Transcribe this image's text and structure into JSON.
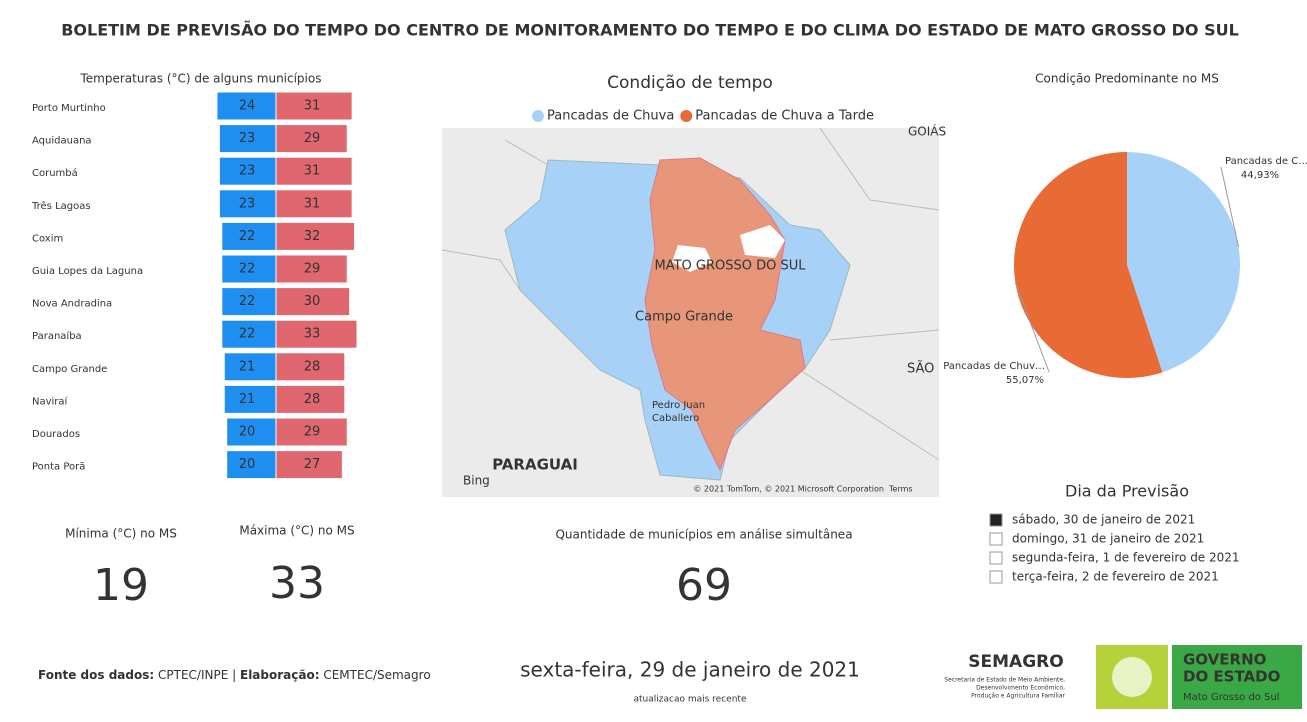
{
  "title": "BOLETIM DE PREVISÃO DO TEMPO DO CENTRO DE MONITORAMENTO DO TEMPO E DO CLIMA DO ESTADO DE MATO GROSSO DO SUL",
  "chart_data": [
    {
      "type": "diverging-bar",
      "title": "Temperaturas (°C) de alguns municípios",
      "categories": [
        "Porto Murtinho",
        "Aquidauana",
        "Corumbá",
        "Três Lagoas",
        "Coxim",
        "Guia Lopes da Laguna",
        "Nova Andradina",
        "Paranaíba",
        "Campo Grande",
        "Naviraí",
        "Dourados",
        "Ponta Porã"
      ],
      "series": [
        {
          "color": "#1e8ff0",
          "values": [
            24,
            23,
            23,
            23,
            22,
            22,
            22,
            22,
            21,
            21,
            20,
            20
          ]
        },
        {
          "color": "#e0666f",
          "values": [
            31,
            29,
            31,
            31,
            32,
            29,
            30,
            33,
            28,
            28,
            29,
            27
          ]
        }
      ]
    },
    {
      "type": "pie",
      "title": "Condição Predominante no MS",
      "categories": [
        "Pancadas de C…",
        "Pancadas de Chuv…"
      ],
      "values": [
        44.93,
        55.07
      ],
      "value_labels": [
        "44,93%",
        "55,07%"
      ],
      "colors": [
        "#a8d1f7",
        "#e86a35"
      ]
    }
  ],
  "map": {
    "title": "Condição de tempo",
    "legend": [
      {
        "name": "Pancadas de Chuva",
        "color": "#a8d1f7"
      },
      {
        "name": "Pancadas de Chuva a Tarde",
        "color": "#e86a35"
      }
    ],
    "labels": {
      "state": "MATO GROSSO DO SUL",
      "city": "Campo Grande",
      "country": "PARAGUAI",
      "goias": "GOIÁS",
      "sao": "SÃO",
      "pedro1": "Pedro Juan",
      "pedro2": "Caballero",
      "bing": "Bing"
    },
    "attribution": "© 2021 TomTom, © 2021 Microsoft Corporation",
    "terms": "Terms"
  },
  "cards": [
    {
      "label": "Mínima (°C) no MS",
      "value": 19
    },
    {
      "label": "Máxima (°C) no MS",
      "value": 33
    },
    {
      "label": "Quantidade de municípios em análise simultânea",
      "value": 69
    }
  ],
  "slicer": {
    "title": "Dia da Previsão",
    "options": [
      "sábado, 30 de janeiro de 2021",
      "domingo, 31 de janeiro de 2021",
      "segunda-feira, 1 de fevereiro de 2021",
      "terça-feira, 2 de fevereiro de 2021"
    ],
    "selected": 0
  },
  "footer": {
    "source_label": "Fonte dos dados:",
    "source": "CPTEC/INPE",
    "separator": "|",
    "made_label": "Elaboração:",
    "made": "CEMTEC/Semagro",
    "date": "sexta-feira, 29 de janeiro de 2021",
    "date_note": "atualizacao mais recente"
  },
  "logos": {
    "semagro": "SEMAGRO",
    "semagro_sub": [
      "Secretaria de Estado de Meio Ambiente,",
      "Desenvolvimento Econômico,",
      "Produção e Agricultura Familiar"
    ],
    "gov1": "GOVERNO",
    "gov2": "DO ESTADO",
    "gov3": "Mato Grosso do Sul"
  }
}
